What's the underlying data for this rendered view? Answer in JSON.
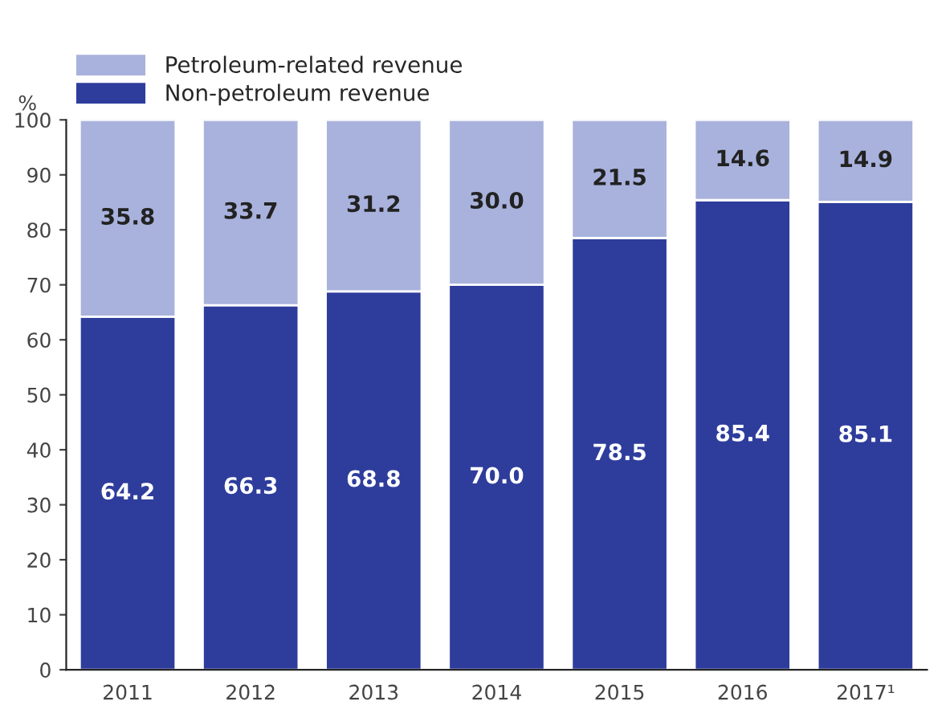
{
  "chart_data": {
    "type": "bar",
    "stacked": true,
    "ylabel": "%",
    "categories": [
      "2011",
      "2012",
      "2013",
      "2014",
      "2015",
      "2016",
      "2017¹"
    ],
    "series": [
      {
        "name": "Non-petroleum revenue",
        "color": "#2e3d9c",
        "values": [
          64.2,
          66.3,
          68.8,
          70.0,
          78.5,
          85.4,
          85.1
        ],
        "value_labels": [
          "64.2",
          "66.3",
          "68.8",
          "70.0",
          "78.5",
          "85.4",
          "85.1"
        ]
      },
      {
        "name": "Petroleum-related revenue",
        "color": "#a8b2dc",
        "values": [
          35.8,
          33.7,
          31.2,
          30.0,
          21.5,
          14.6,
          14.9
        ],
        "value_labels": [
          "35.8",
          "33.7",
          "31.2",
          "30.0",
          "21.5",
          "14.6",
          "14.9"
        ]
      }
    ],
    "ylim": [
      0,
      100
    ],
    "yticks": [
      0,
      10,
      20,
      30,
      40,
      50,
      60,
      70,
      80,
      90,
      100
    ],
    "grid": false,
    "legend": "top left"
  }
}
